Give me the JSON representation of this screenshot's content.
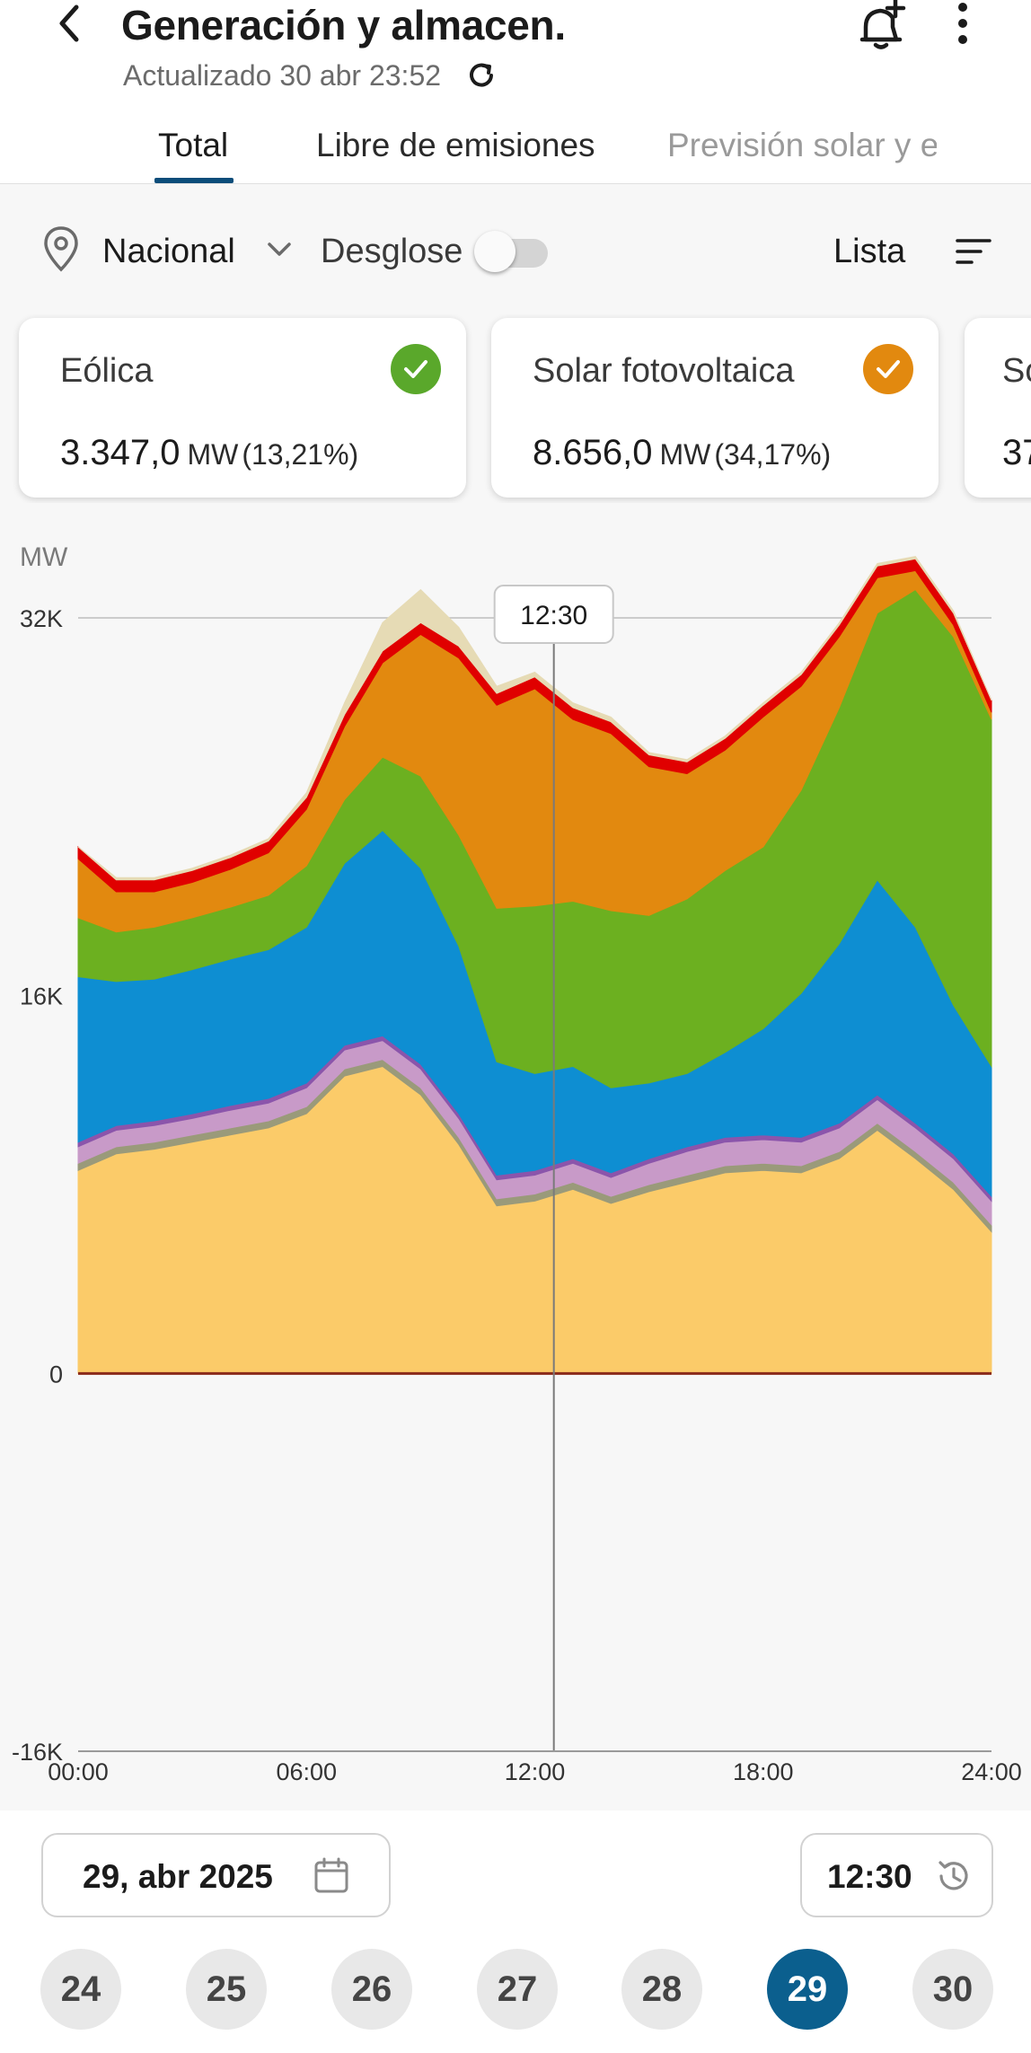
{
  "header": {
    "title": "Generación y almacen.",
    "subtitle": "Actualizado 30 abr 23:52",
    "back_icon": "chevron-left-icon",
    "refresh_icon": "refresh-icon",
    "bell_icon": "bell-plus-icon",
    "more_icon": "more-vertical-icon"
  },
  "tabs": [
    {
      "label": "Total",
      "selected": true
    },
    {
      "label": "Libre de emisiones",
      "selected": false
    },
    {
      "label": "Previsión solar y e",
      "selected": false
    }
  ],
  "filters": {
    "region": "Nacional",
    "desglose_label": "Desglose",
    "desglose_enabled": false,
    "list_label": "Lista"
  },
  "cards": [
    {
      "name": "Eólica",
      "value": "3.347,0",
      "unit": "MW",
      "percent": "(13,21%)",
      "check_color": "#5aa82b",
      "checked": true
    },
    {
      "name": "Solar fotovoltaica",
      "value": "8.656,0",
      "unit": "MW",
      "percent": "(34,17%)",
      "check_color": "#e2890f",
      "checked": true
    },
    {
      "name": "So",
      "value": "37",
      "unit": "",
      "percent": "",
      "check_color": "",
      "checked": false
    }
  ],
  "chart_data": {
    "type": "area",
    "unit_label": "MW",
    "y_ticks": [
      "32K",
      "16K",
      "0",
      "-16K"
    ],
    "x_ticks": [
      "00:00",
      "06:00",
      "12:00",
      "18:00",
      "24:00"
    ],
    "ylim": [
      -16000,
      32000
    ],
    "xlim": [
      0,
      24
    ],
    "cursor_time": "12:30",
    "cursor_x": 12.5,
    "x": [
      0,
      1,
      2,
      3,
      4,
      5,
      6,
      7,
      8,
      9,
      10,
      11,
      12,
      13,
      14,
      15,
      16,
      17,
      18,
      19,
      20,
      21,
      22,
      23,
      24
    ],
    "series": [
      {
        "color": "#fbcb69",
        "values": [
          8600,
          9300,
          9500,
          9800,
          10100,
          10400,
          11000,
          12600,
          13000,
          11800,
          9700,
          7100,
          7300,
          7800,
          7200,
          7700,
          8100,
          8500,
          8600,
          8500,
          9100,
          10300,
          9100,
          7800,
          6000
        ]
      },
      {
        "color": "#9a9a7a",
        "values": [
          300,
          300,
          300,
          300,
          300,
          300,
          300,
          300,
          300,
          300,
          300,
          300,
          300,
          300,
          300,
          300,
          300,
          300,
          300,
          300,
          300,
          300,
          300,
          300,
          300
        ]
      },
      {
        "color": "#c89ac8",
        "values": [
          700,
          700,
          700,
          700,
          750,
          750,
          800,
          800,
          800,
          800,
          800,
          800,
          800,
          800,
          800,
          900,
          1000,
          1000,
          1000,
          1000,
          1000,
          1000,
          1000,
          1000,
          1000
        ]
      },
      {
        "color": "#8b55ab",
        "values": [
          200,
          200,
          200,
          200,
          200,
          200,
          200,
          200,
          200,
          200,
          200,
          200,
          200,
          200,
          200,
          200,
          200,
          200,
          200,
          200,
          200,
          200,
          200,
          200,
          200
        ]
      },
      {
        "color": "#0e8ed2",
        "values": [
          7000,
          6100,
          6000,
          6100,
          6200,
          6300,
          6600,
          7700,
          8700,
          8300,
          7100,
          4800,
          4100,
          3900,
          3600,
          3200,
          3100,
          3600,
          4500,
          6100,
          7600,
          9100,
          8300,
          6300,
          5500
        ]
      },
      {
        "color": "#6cb020",
        "values": [
          2500,
          2100,
          2200,
          2200,
          2200,
          2300,
          2600,
          2700,
          3100,
          3900,
          4700,
          6500,
          7100,
          7000,
          7500,
          7100,
          7400,
          7700,
          7700,
          8600,
          10000,
          11300,
          14300,
          15600,
          14700
        ]
      },
      {
        "color": "#e2890f",
        "values": [
          2500,
          1700,
          1500,
          1500,
          1600,
          1800,
          2400,
          3100,
          4000,
          6000,
          7500,
          8600,
          9200,
          7700,
          7500,
          6300,
          5300,
          5100,
          5500,
          4400,
          3000,
          1500,
          800,
          500,
          300
        ]
      },
      {
        "color": "#e00000",
        "values": [
          500,
          500,
          500,
          500,
          500,
          500,
          500,
          500,
          500,
          500,
          500,
          500,
          500,
          500,
          500,
          500,
          500,
          500,
          500,
          500,
          500,
          500,
          500,
          500,
          500
        ]
      },
      {
        "color": "#e6dbb5",
        "values": [
          0,
          100,
          100,
          100,
          100,
          100,
          200,
          500,
          1200,
          1400,
          800,
          300,
          200,
          200,
          200,
          100,
          100,
          100,
          100,
          100,
          100,
          100,
          100,
          100,
          0
        ]
      }
    ]
  },
  "date_picker": {
    "date_value": "29, abr 2025",
    "calendar_icon": "calendar-icon",
    "time_value": "12:30",
    "history_icon": "history-icon"
  },
  "day_chips": [
    {
      "label": "24",
      "selected": false
    },
    {
      "label": "25",
      "selected": false
    },
    {
      "label": "26",
      "selected": false
    },
    {
      "label": "27",
      "selected": false
    },
    {
      "label": "28",
      "selected": false
    },
    {
      "label": "29",
      "selected": true
    },
    {
      "label": "30",
      "selected": false
    }
  ]
}
